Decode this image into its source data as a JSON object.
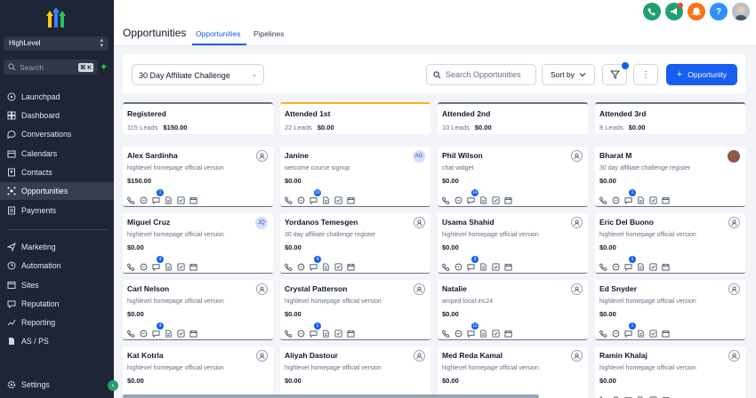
{
  "sidebar": {
    "location": "HighLevel",
    "search_placeholder": "Search",
    "search_shortcut": "⌘ K",
    "items": [
      {
        "label": "Launchpad",
        "icon": "rocket-icon"
      },
      {
        "label": "Dashboard",
        "icon": "dashboard-icon"
      },
      {
        "label": "Conversations",
        "icon": "chat-icon"
      },
      {
        "label": "Calendars",
        "icon": "calendar-icon"
      },
      {
        "label": "Contacts",
        "icon": "contacts-icon"
      },
      {
        "label": "Opportunities",
        "icon": "opportunities-icon",
        "active": true
      },
      {
        "label": "Payments",
        "icon": "payments-icon"
      },
      {
        "label": "Marketing",
        "icon": "send-icon"
      },
      {
        "label": "Automation",
        "icon": "automation-icon"
      },
      {
        "label": "Sites",
        "icon": "sites-icon"
      },
      {
        "label": "Reputation",
        "icon": "reputation-icon"
      },
      {
        "label": "Reporting",
        "icon": "reporting-icon"
      },
      {
        "label": "AS / PS",
        "icon": "document-icon"
      }
    ],
    "settings_label": "Settings"
  },
  "header": {
    "title": "Opportunities",
    "tabs": [
      {
        "label": "Opportunities",
        "active": true
      },
      {
        "label": "Pipelines"
      }
    ]
  },
  "toolbar": {
    "pipeline": "30 Day Affiliate Challenge",
    "search_placeholder": "Search Opportunities",
    "sort_label": "Sort by",
    "add_label": "Opportunity"
  },
  "columns": [
    {
      "name": "Registered",
      "leads": "115 Leads",
      "amount": "$150.00",
      "accent": "#667085",
      "cards": [
        {
          "name": "Alex Sardinha",
          "source": "highlevel homepage official version",
          "value": "$150.00",
          "owner": "assign",
          "badge": "1"
        },
        {
          "name": "Miguel Cruz",
          "source": "highlevel homepage official version",
          "value": "$0.00",
          "owner": "JQ",
          "badge": "4"
        },
        {
          "name": "Carl Nelson",
          "source": "highlevel homepage official version",
          "value": "$0.00",
          "owner": "assign",
          "badge": "4"
        },
        {
          "name": "Kat Kotrla",
          "source": "highlevel homepage official version",
          "value": "$0.00",
          "owner": "assign",
          "badge": ""
        }
      ]
    },
    {
      "name": "Attended 1st",
      "leads": "22 Leads",
      "amount": "$0.00",
      "accent": "#fdb022",
      "cards": [
        {
          "name": "Janine",
          "source": "welcome course signup",
          "value": "$0.00",
          "owner": "AG",
          "badge": "10"
        },
        {
          "name": "Yordanos Temesgen",
          "source": "30 day affiliate challenge register",
          "value": "$0.00",
          "owner": "assign",
          "badge": "4"
        },
        {
          "name": "Crystal Patterson",
          "source": "highlevel homepage official version",
          "value": "$0.00",
          "owner": "assign",
          "badge": "1"
        },
        {
          "name": "Aliyah Dastour",
          "source": "highlevel homepage official version",
          "value": "$0.00",
          "owner": "assign",
          "badge": ""
        }
      ]
    },
    {
      "name": "Attended 2nd",
      "leads": "10 Leads",
      "amount": "$0.00",
      "accent": "#667085",
      "cards": [
        {
          "name": "Phil Wilson",
          "source": "chat widget",
          "value": "$0.00",
          "owner": "assign",
          "badge": "14"
        },
        {
          "name": "Usama Shahid",
          "source": "highlevel homepage official version",
          "value": "$0.00",
          "owner": "assign",
          "badge": "3"
        },
        {
          "name": "Natalie",
          "source": "amped-local-inc24",
          "value": "$0.00",
          "owner": "assign",
          "badge": "11"
        },
        {
          "name": "Med Reda Kamal",
          "source": "highlevel homepage official version",
          "value": "$0.00",
          "owner": "assign",
          "badge": ""
        }
      ]
    },
    {
      "name": "Attended 3rd",
      "leads": "8 Leads",
      "amount": "$0.00",
      "accent": "#667085",
      "cards": [
        {
          "name": "Bharat M",
          "source": "30 day affiliate challenge register",
          "value": "$0.00",
          "owner": "photo",
          "badge": "1"
        },
        {
          "name": "Eric Del Buono",
          "source": "highlevel homepage official version",
          "value": "$0.00",
          "owner": "assign",
          "badge": "1"
        },
        {
          "name": "Ed Snyder",
          "source": "highlevel homepage official version",
          "value": "$0.00",
          "owner": "assign",
          "badge": "1"
        },
        {
          "name": "Ramin Khalaj",
          "source": "highlevel homepage official version",
          "value": "$0.00",
          "owner": "assign",
          "badge": ""
        }
      ]
    }
  ],
  "colors": {
    "primary": "#155eef",
    "sidebar": "#1e2537",
    "success": "#22a06b",
    "orange": "#f97316",
    "help": "#2e90fa"
  }
}
